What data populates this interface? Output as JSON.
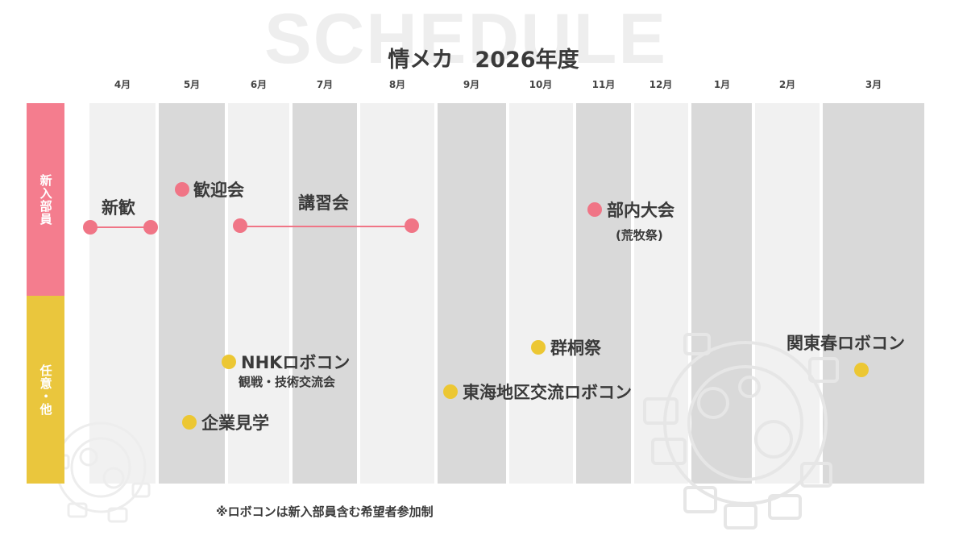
{
  "watermark": "SCHEDULE",
  "title": "情メカ　2026年度",
  "months": [
    "4月",
    "5月",
    "6月",
    "7月",
    "8月",
    "9月",
    "10月",
    "11月",
    "12月",
    "1月",
    "2月",
    "3月"
  ],
  "categories": {
    "new_members": "新入部員",
    "optional": "任意・他"
  },
  "events": {
    "shinkan": "新歓",
    "kangeikai": "歓迎会",
    "koshukai": "講習会",
    "bunai_taikai": "部内大会",
    "bunai_taikai_note": "(荒牧祭)",
    "nhk_robocon": "NHKロボコン",
    "nhk_robocon_note": "観戦・技術交流会",
    "kigyo_kengaku": "企業見学",
    "gunto_sai": "群桐祭",
    "tokai_robocon": "東海地区交流ロボコン",
    "kanto_haru_robocon": "関東春ロボコン"
  },
  "footnote": "※ロボコンは新入部員含む希望者参加制",
  "colors": {
    "new_members": "#f47d8e",
    "optional": "#eac63d",
    "column_light": "#f1f1f1",
    "column_dark": "#d9d9d9"
  },
  "icons": [
    "robot-gear-decoration-icon"
  ]
}
